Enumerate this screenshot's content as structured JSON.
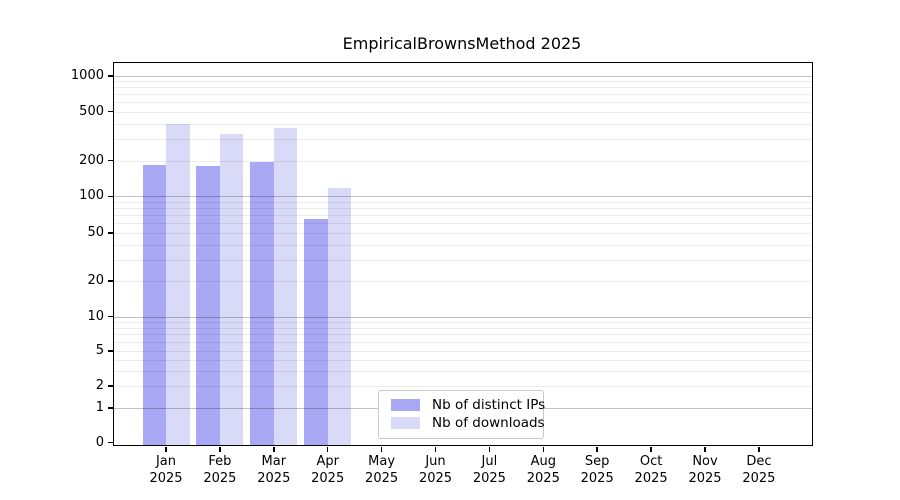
{
  "chart_data": {
    "type": "bar",
    "title": "EmpiricalBrownsMethod 2025",
    "xlabel": "",
    "ylabel": "",
    "yscale": "log-like",
    "yticks": [
      0,
      1,
      2,
      5,
      10,
      20,
      50,
      100,
      200,
      500,
      1000
    ],
    "ylim": [
      0,
      1000
    ],
    "grid": "major and minor horizontal gridlines",
    "legend_position": "bottom-center",
    "months": [
      "Jan",
      "Feb",
      "Mar",
      "Apr",
      "May",
      "Jun",
      "Jul",
      "Aug",
      "Sep",
      "Oct",
      "Nov",
      "Dec"
    ],
    "year_label": "2025",
    "categories": [
      "Jan 2025",
      "Feb 2025",
      "Mar 2025",
      "Apr 2025",
      "May 2025",
      "Jun 2025",
      "Jul 2025",
      "Aug 2025",
      "Sep 2025",
      "Oct 2025",
      "Nov 2025",
      "Dec 2025"
    ],
    "series": [
      {
        "name": "Nb of distinct IPs",
        "color": "#a8a8f4",
        "values": [
          182,
          180,
          193,
          65,
          null,
          null,
          null,
          null,
          null,
          null,
          null,
          null
        ]
      },
      {
        "name": "Nb of downloads",
        "color": "#d9d9f8",
        "values": [
          395,
          330,
          368,
          117,
          null,
          null,
          null,
          null,
          null,
          null,
          null,
          null
        ]
      }
    ]
  },
  "colors": {
    "major_gridline": "#c3c3c3",
    "minor_gridline": "#ececec",
    "axis": "#000000",
    "background": "#ffffff"
  }
}
